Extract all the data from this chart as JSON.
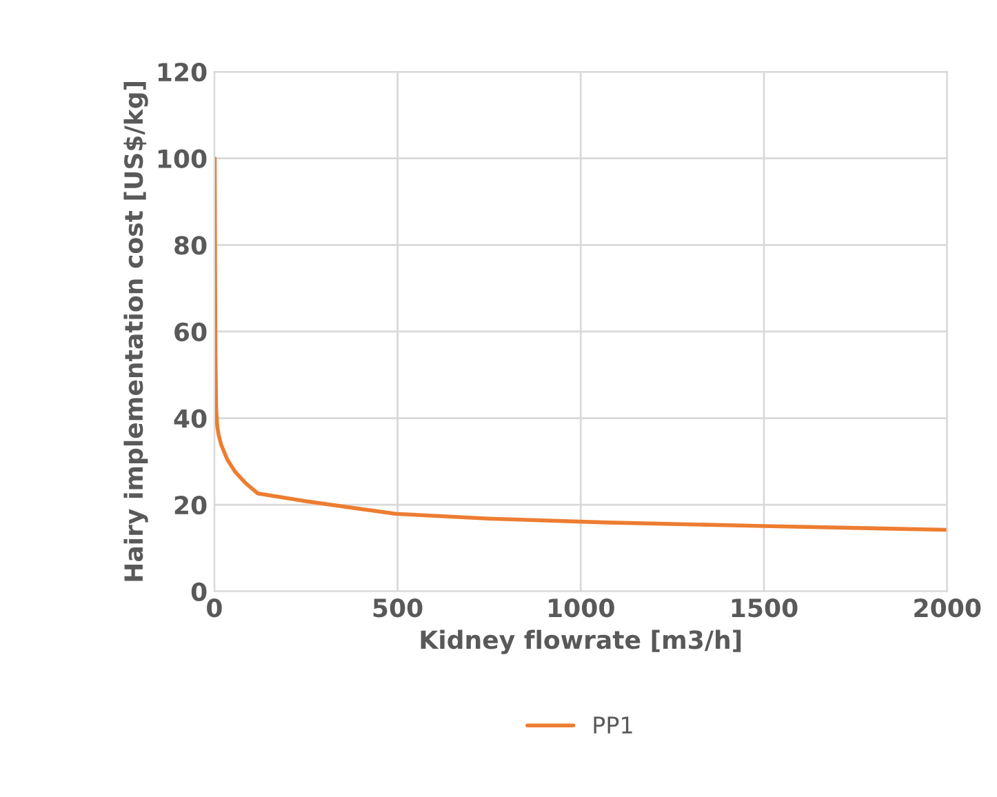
{
  "chart_data": {
    "type": "line",
    "xlabel": "Kidney flowrate [m3/h]",
    "ylabel": "Hairy implementation cost [US$/kg]",
    "series": [
      {
        "name": "PP1",
        "color": "#ed7d31",
        "x": [
          1,
          2,
          3,
          5,
          8,
          12,
          19,
          35,
          56,
          85,
          119,
          250,
          495,
          750,
          1073,
          1500,
          2000
        ],
        "values": [
          100,
          75,
          55,
          42,
          38,
          36,
          33.8,
          30.5,
          27.7,
          25,
          22.6,
          20.8,
          17.9,
          16.8,
          15.9,
          15.1,
          14.2
        ]
      }
    ],
    "xlim": [
      0,
      2000
    ],
    "xticks": [
      0,
      500,
      1000,
      1500,
      2000
    ],
    "ylim": [
      0,
      120
    ],
    "yticks": [
      0,
      20,
      40,
      60,
      80,
      100,
      120
    ],
    "grid": true,
    "legend": "bottom"
  }
}
